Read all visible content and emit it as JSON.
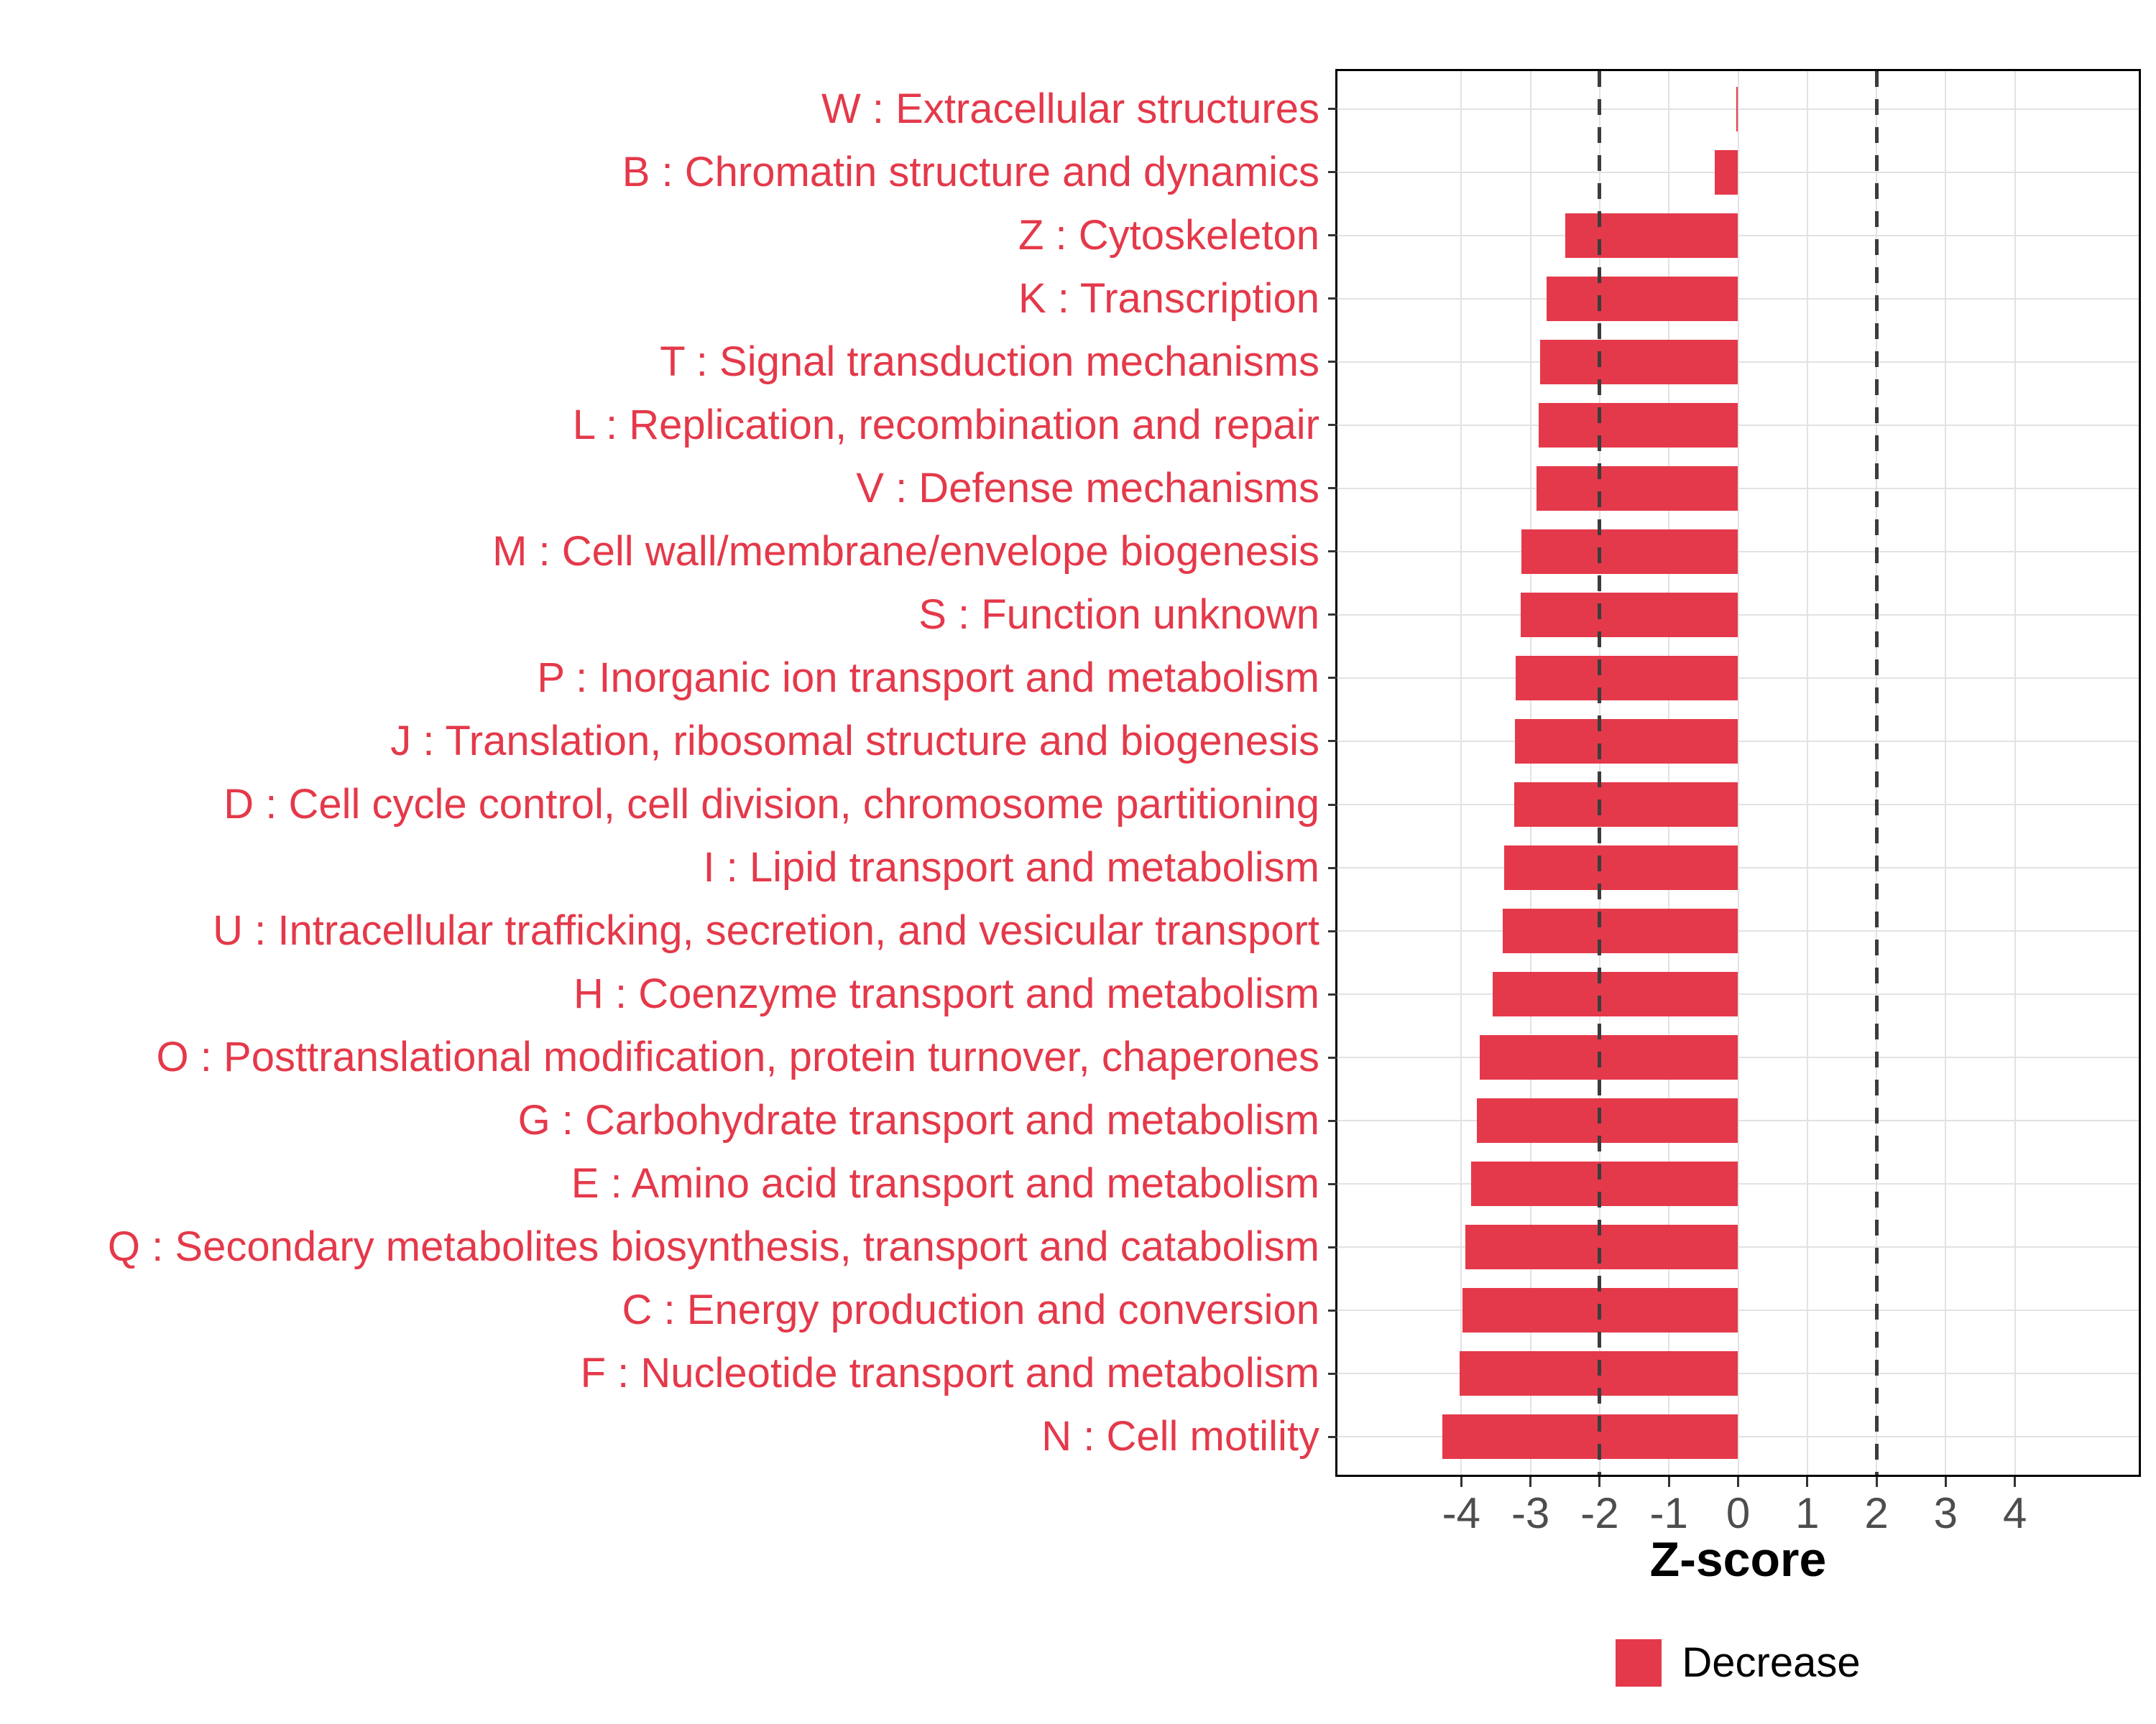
{
  "chart_data": {
    "type": "bar",
    "orientation": "horizontal",
    "title": "",
    "xlabel": "Z-score",
    "ylabel": "",
    "series_name": "Decrease",
    "categories": [
      "W : Extracellular structures",
      "B : Chromatin structure and dynamics",
      "Z : Cytoskeleton",
      "K : Transcription",
      "T : Signal transduction mechanisms",
      "L : Replication, recombination and repair",
      "V : Defense mechanisms",
      "M : Cell wall/membrane/envelope biogenesis",
      "S : Function unknown",
      "P : Inorganic ion transport and metabolism",
      "J : Translation, ribosomal structure and biogenesis",
      "D : Cell cycle control, cell division, chromosome partitioning",
      "I : Lipid transport and metabolism",
      "U : Intracellular trafficking, secretion, and vesicular transport",
      "H : Coenzyme transport and metabolism",
      "O : Posttranslational modification, protein turnover, chaperones",
      "G : Carbohydrate transport and metabolism",
      "E : Amino acid transport and metabolism",
      "Q : Secondary metabolites biosynthesis, transport and catabolism",
      "C : Energy production and conversion",
      "F : Nucleotide transport and metabolism",
      "N : Cell motility"
    ],
    "values": [
      -0.03,
      -0.34,
      -2.5,
      -2.77,
      -2.86,
      -2.88,
      -2.91,
      -3.13,
      -3.14,
      -3.21,
      -3.22,
      -3.24,
      -3.38,
      -3.4,
      -3.55,
      -3.73,
      -3.78,
      -3.86,
      -3.94,
      -3.98,
      -4.02,
      -4.27
    ],
    "x_ticks": [
      -4,
      -3,
      -2,
      -1,
      0,
      1,
      2,
      3,
      4
    ],
    "xlim": [
      -5.79,
      5.79
    ],
    "reference_lines": {
      "values": [
        -2,
        2
      ],
      "style": "dashed",
      "color": "#3C3C3C"
    },
    "grid": {
      "x_major_at_ticks": true,
      "y_major_at_category_centers": true,
      "color": "#E2E2E2"
    },
    "legend": {
      "position": "bottom",
      "items": [
        {
          "label": "Decrease",
          "color": "#E4394A"
        }
      ]
    },
    "colors": {
      "bar": "#E4394A",
      "category_label": "#E4394A",
      "tick_label": "#4D4D4D",
      "tick_mark": "#333333",
      "panel_border": "#000000",
      "axis_title": "#000000"
    }
  }
}
